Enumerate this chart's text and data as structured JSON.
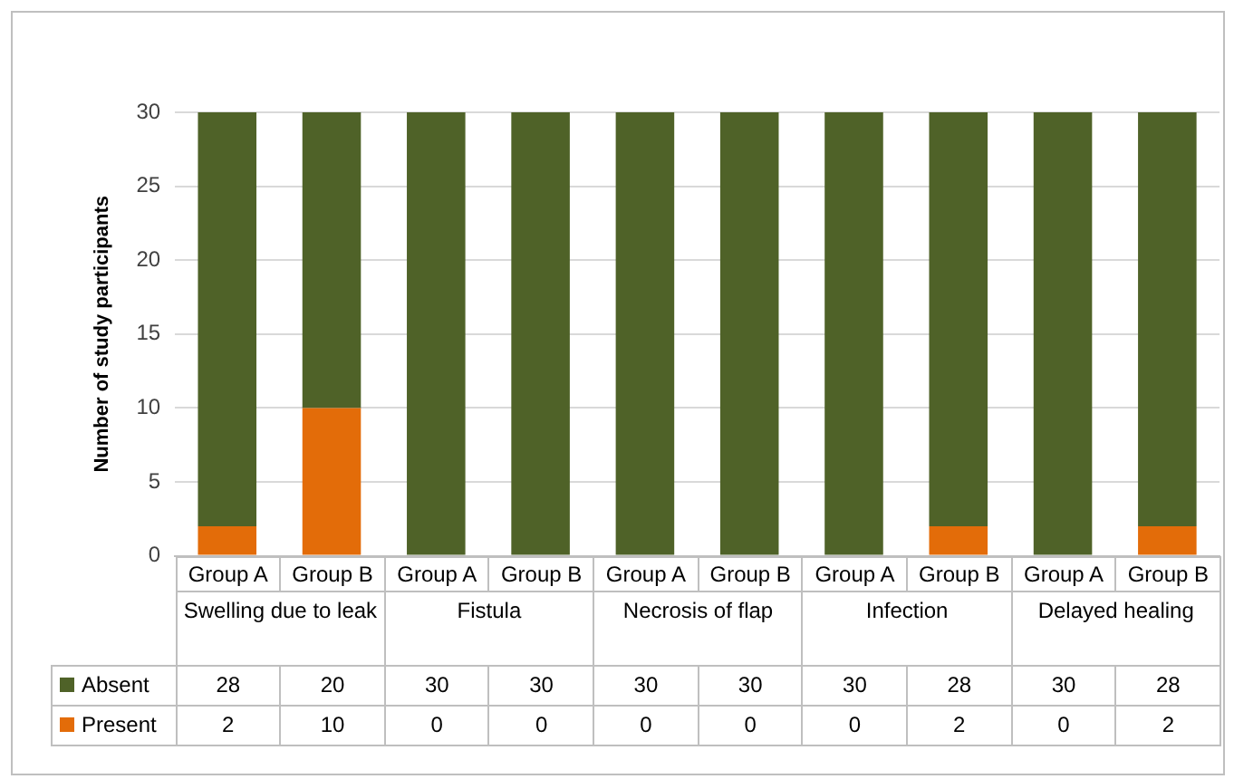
{
  "chart_data": {
    "type": "bar",
    "stacked": true,
    "ylabel": "Number of study participants",
    "categories": [
      "Group A",
      "Group B",
      "Group A",
      "Group B",
      "Group A",
      "Group B",
      "Group A",
      "Group B",
      "Group A",
      "Group B"
    ],
    "annotations": [
      "Swelling due to leak",
      "Fistula",
      "Necrosis of flap",
      "Infection",
      "Delayed healing"
    ],
    "series": [
      {
        "name": "Present",
        "color": "#e36c09",
        "values": [
          2,
          10,
          0,
          0,
          0,
          0,
          0,
          2,
          0,
          2
        ]
      },
      {
        "name": "Absent",
        "color": "#4f6228",
        "values": [
          28,
          20,
          30,
          30,
          30,
          30,
          30,
          28,
          30,
          28
        ]
      }
    ],
    "ylim": [
      0,
      30
    ],
    "yticks": [
      0,
      5,
      10,
      15,
      20,
      25,
      30
    ],
    "grid": "y",
    "legend": "bottom",
    "data_labels": true
  }
}
